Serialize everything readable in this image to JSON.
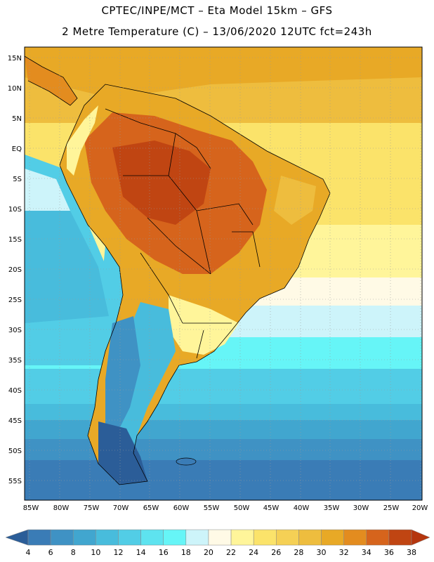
{
  "title_line1": "CPTEC/INPE/MCT –  Eta Model 15km – GFS",
  "title_line2": "2 Metre Temperature (C) – 13/06/2020 12UTC fct=243h",
  "lat_labels": [
    "15N",
    "10N",
    "5N",
    "EQ",
    "5S",
    "10S",
    "15S",
    "20S",
    "25S",
    "30S",
    "35S",
    "40S",
    "45S",
    "50S",
    "55S"
  ],
  "lon_labels": [
    "85W",
    "80W",
    "75W",
    "70W",
    "65W",
    "60W",
    "55W",
    "50W",
    "45W",
    "40W",
    "35W",
    "30W",
    "25W",
    "20W"
  ],
  "colorbar": {
    "ticks": [
      "4",
      "6",
      "8",
      "10",
      "12",
      "14",
      "16",
      "18",
      "20",
      "22",
      "24",
      "26",
      "28",
      "30",
      "32",
      "34",
      "36",
      "38"
    ],
    "colors": [
      "#2b5d98",
      "#3a7cb6",
      "#3f92c4",
      "#41a6cf",
      "#48bcdc",
      "#52cde6",
      "#5ee3ef",
      "#66f5f7",
      "#cdf4fa",
      "#fffae6",
      "#fff59a",
      "#fbe36a",
      "#f5d055",
      "#eebd3e",
      "#e8a926",
      "#e38c1f",
      "#d6641c",
      "#c04512",
      "#b5360e"
    ]
  }
}
